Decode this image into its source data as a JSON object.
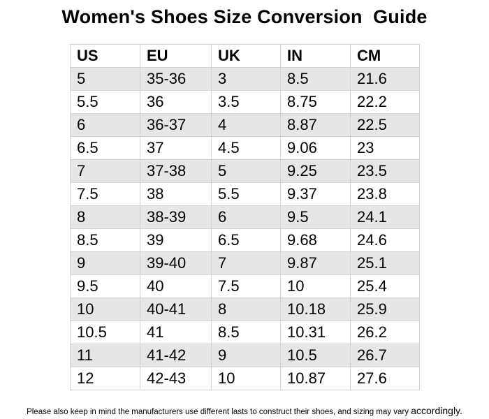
{
  "title": "Women's Shoes Size Conversion  Guide",
  "table": {
    "headers": [
      "US",
      "EU",
      "UK",
      "IN",
      "CM"
    ],
    "rows": [
      [
        "5",
        "35-36",
        "3",
        "8.5",
        "21.6"
      ],
      [
        "5.5",
        "36",
        "3.5",
        "8.75",
        "22.2"
      ],
      [
        "6",
        "36-37",
        "4",
        "8.87",
        "22.5"
      ],
      [
        "6.5",
        "37",
        "4.5",
        "9.06",
        "23"
      ],
      [
        "7",
        "37-38",
        "5",
        "9.25",
        "23.5"
      ],
      [
        "7.5",
        "38",
        "5.5",
        "9.37",
        "23.8"
      ],
      [
        "8",
        "38-39",
        "6",
        "9.5",
        "24.1"
      ],
      [
        "8.5",
        "39",
        "6.5",
        "9.68",
        "24.6"
      ],
      [
        "9",
        "39-40",
        "7",
        "9.87",
        "25.1"
      ],
      [
        "9.5",
        "40",
        "7.5",
        "10",
        "25.4"
      ],
      [
        "10",
        "40-41",
        "8",
        "10.18",
        "25.9"
      ],
      [
        "10.5",
        "41",
        "8.5",
        "10.31",
        "26.2"
      ],
      [
        "11",
        "41-42",
        "9",
        "10.5",
        "26.7"
      ],
      [
        "12",
        "42-43",
        "10",
        "10.87",
        "27.6"
      ]
    ]
  },
  "footnote": {
    "text": "Please also keep in mind the manufacturers use different lasts to construct their shoes, and sizing may vary ",
    "emphasis": "accordingly."
  },
  "colors": {
    "shaded_row": "#e6e6e6",
    "grid_line": "#d2d2d2"
  }
}
